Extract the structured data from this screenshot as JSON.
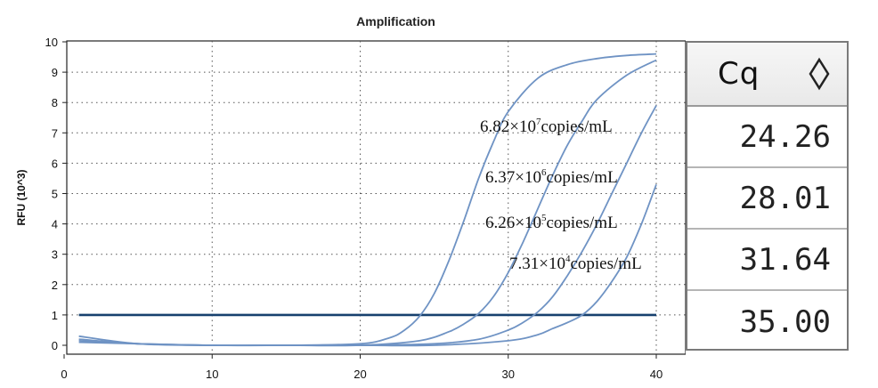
{
  "chart_data": {
    "type": "line",
    "title": "Amplification",
    "xlabel": "",
    "ylabel": "RFU (10^3)",
    "xlim": [
      0,
      40
    ],
    "ylim": [
      0,
      10
    ],
    "xticks": [
      0,
      10,
      20,
      30,
      40
    ],
    "yticks": [
      0,
      1,
      2,
      3,
      4,
      5,
      6,
      7,
      8,
      9,
      10
    ],
    "grid": "dotted",
    "threshold": 1,
    "colors": {
      "curve": "#6f93c4",
      "threshold": "#17406e",
      "axis": "#222222"
    },
    "series": [
      {
        "x": [
          1,
          5,
          10,
          15,
          20,
          22,
          23,
          24,
          25,
          26,
          27,
          28,
          29,
          30,
          32,
          34,
          36,
          38,
          40
        ],
        "y": [
          0.3,
          0.05,
          0.0,
          0.0,
          0.05,
          0.25,
          0.5,
          0.95,
          1.7,
          2.8,
          4.1,
          5.5,
          6.7,
          7.7,
          8.8,
          9.25,
          9.45,
          9.55,
          9.6
        ]
      },
      {
        "x": [
          1,
          5,
          10,
          15,
          20,
          24,
          26,
          27,
          28,
          29,
          30,
          31,
          32,
          33,
          34,
          35,
          36,
          38,
          40
        ],
        "y": [
          0.2,
          0.05,
          0.0,
          0.0,
          0.0,
          0.15,
          0.45,
          0.7,
          1.05,
          1.6,
          2.4,
          3.4,
          4.5,
          5.6,
          6.6,
          7.4,
          8.1,
          8.9,
          9.4
        ]
      },
      {
        "x": [
          1,
          5,
          10,
          15,
          20,
          25,
          28,
          30,
          31,
          32,
          33,
          34,
          35,
          36,
          37,
          38,
          39,
          40
        ],
        "y": [
          0.15,
          0.05,
          0.0,
          0.0,
          0.0,
          0.05,
          0.2,
          0.5,
          0.75,
          1.1,
          1.6,
          2.3,
          3.1,
          4.0,
          5.0,
          6.0,
          7.0,
          7.9
        ]
      },
      {
        "x": [
          1,
          5,
          10,
          15,
          20,
          25,
          30,
          32,
          33,
          34,
          35,
          36,
          37,
          38,
          39,
          40
        ],
        "y": [
          0.1,
          0.05,
          0.0,
          0.0,
          0.0,
          0.0,
          0.15,
          0.35,
          0.55,
          0.75,
          1.0,
          1.45,
          2.1,
          2.9,
          4.0,
          5.3
        ]
      }
    ],
    "annotations": [
      {
        "base": "6.82×10",
        "sup": "7",
        "suffix": "copies/mL"
      },
      {
        "base": "6.37×10",
        "sup": "6",
        "suffix": "copies/mL"
      },
      {
        "base": "6.26×10",
        "sup": "5",
        "suffix": "copies/mL"
      },
      {
        "base": "7.31×10",
        "sup": "4",
        "suffix": "copies/mL"
      }
    ]
  },
  "cq_table": {
    "header": "Cq",
    "sort_icon": "sort-diamond-icon",
    "values": [
      "24.26",
      "28.01",
      "31.64",
      "35.00"
    ]
  }
}
